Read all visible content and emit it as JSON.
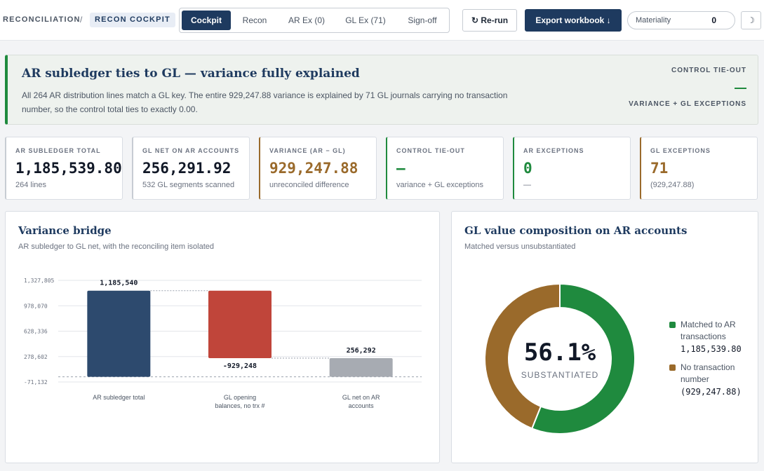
{
  "breadcrumb": {
    "section": "RECONCILIATION",
    "separator": "/",
    "current": "RECON COCKPIT"
  },
  "tabs": [
    {
      "label": "Cockpit",
      "active": true
    },
    {
      "label": "Recon",
      "active": false
    },
    {
      "label": "AR Ex (0)",
      "active": false
    },
    {
      "label": "GL Ex (71)",
      "active": false
    },
    {
      "label": "Sign-off",
      "active": false
    }
  ],
  "actions": {
    "rerun_label": "↻ Re-run",
    "export_label": "Export workbook ↓"
  },
  "materiality": {
    "label": "Materiality",
    "value": "0"
  },
  "theme_toggle": {
    "icon": "moon-icon",
    "glyph": "☽"
  },
  "banner": {
    "title": "AR subledger ties to GL — variance fully explained",
    "body": "All 264 AR distribution lines match a GL key. The entire 929,247.88 variance is explained by 71 GL journals carrying no transaction number, so the control total ties to exactly 0.00.",
    "right_title": "CONTROL TIE-OUT",
    "right_value": "—",
    "right_sub": "VARIANCE + GL EXCEPTIONS"
  },
  "kpis": [
    {
      "label": "AR SUBLEDGER TOTAL",
      "value": "1,185,539.80",
      "sub": "264 lines",
      "accent": "#c7ccd3",
      "value_color": "#111827"
    },
    {
      "label": "GL NET ON AR ACCOUNTS",
      "value": "256,291.92",
      "sub": "532 GL segments scanned",
      "accent": "#c7ccd3",
      "value_color": "#111827"
    },
    {
      "label": "VARIANCE (AR − GL)",
      "value": "929,247.88",
      "sub": "unreconciled difference",
      "accent": "#9a6a2b",
      "value_color": "#9a6a2b"
    },
    {
      "label": "CONTROL TIE-OUT",
      "value": "—",
      "sub": "variance + GL exceptions",
      "accent": "#1f8a3e",
      "value_color": "#1f8a3e"
    },
    {
      "label": "AR EXCEPTIONS",
      "value": "0",
      "sub": "—",
      "accent": "#1f8a3e",
      "value_color": "#1f8a3e"
    },
    {
      "label": "GL EXCEPTIONS",
      "value": "71",
      "sub": "(929,247.88)",
      "accent": "#9a6a2b",
      "value_color": "#9a6a2b"
    }
  ],
  "bridge_panel": {
    "title": "Variance bridge",
    "subtitle": "AR subledger to GL net, with the reconciling item isolated"
  },
  "composition_panel": {
    "title": "GL value composition on AR accounts",
    "subtitle": "Matched versus unsubstantiated"
  },
  "chart_data": [
    {
      "type": "bar",
      "subtype": "waterfall",
      "categories": [
        "AR subledger total",
        "GL opening balances, no trx #",
        "GL net on AR accounts"
      ],
      "values": [
        1185540,
        -929248,
        256292
      ],
      "value_labels": [
        "1,185,540",
        "-929,248",
        "256,292"
      ],
      "colors": [
        "#2d4a6e",
        "#c0453a",
        "#a7abb2"
      ],
      "yticks": [
        -71132,
        278602,
        628336,
        978070,
        1327805
      ],
      "ytick_labels": [
        "-71,132",
        "278,602",
        "628,336",
        "978,070",
        "1,327,805"
      ],
      "ylim": [
        -71132,
        1327805
      ],
      "grid": true
    },
    {
      "type": "pie",
      "subtype": "donut",
      "center_value": "56.1%",
      "center_label": "SUBSTANTIATED",
      "slices": [
        {
          "label": "Matched to AR transactions",
          "value": 1185539.8,
          "display": "1,185,539.80",
          "color": "#1f8a3e"
        },
        {
          "label": "No transaction number",
          "value": 929247.88,
          "display": "(929,247.88)",
          "color": "#9a6a2b"
        }
      ]
    }
  ]
}
